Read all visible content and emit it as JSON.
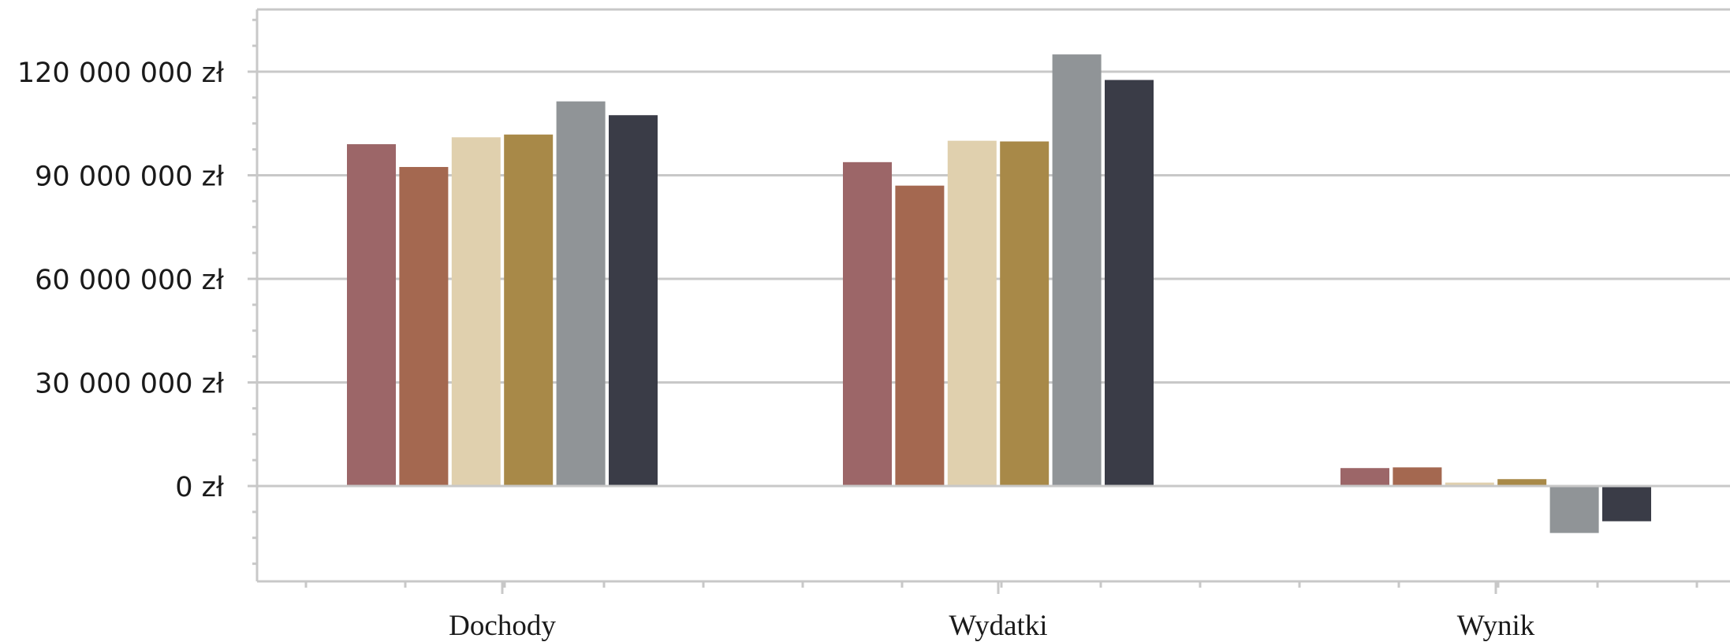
{
  "chart_data": {
    "type": "bar",
    "categories": [
      "Dochody",
      "Wydatki",
      "Wynik"
    ],
    "series": [
      {
        "values": [
          99000000,
          93800000,
          5200000
        ],
        "color": "#9c6668"
      },
      {
        "values": [
          92400000,
          87000000,
          5400000
        ],
        "color": "#a46850"
      },
      {
        "values": [
          101000000,
          100000000,
          1000000
        ],
        "color": "#e0d0ae"
      },
      {
        "values": [
          101800000,
          99800000,
          2000000
        ],
        "color": "#a88948"
      },
      {
        "values": [
          111400000,
          125000000,
          -13600000
        ],
        "color": "#909497"
      },
      {
        "values": [
          107400000,
          117600000,
          -10200000
        ],
        "color": "#3a3c47"
      }
    ],
    "ylim": [
      -27000000,
      138000000
    ],
    "yticks": [
      {
        "value": 0,
        "label": "0 zł"
      },
      {
        "value": 30000000,
        "label": "30 000 000 zł"
      },
      {
        "value": 60000000,
        "label": "60 000 000 zł"
      },
      {
        "value": 90000000,
        "label": "90 000 000 zł"
      },
      {
        "value": 120000000,
        "label": "120 000 000 zł"
      }
    ],
    "grid": true,
    "title": "",
    "xlabel": "",
    "ylabel": ""
  }
}
